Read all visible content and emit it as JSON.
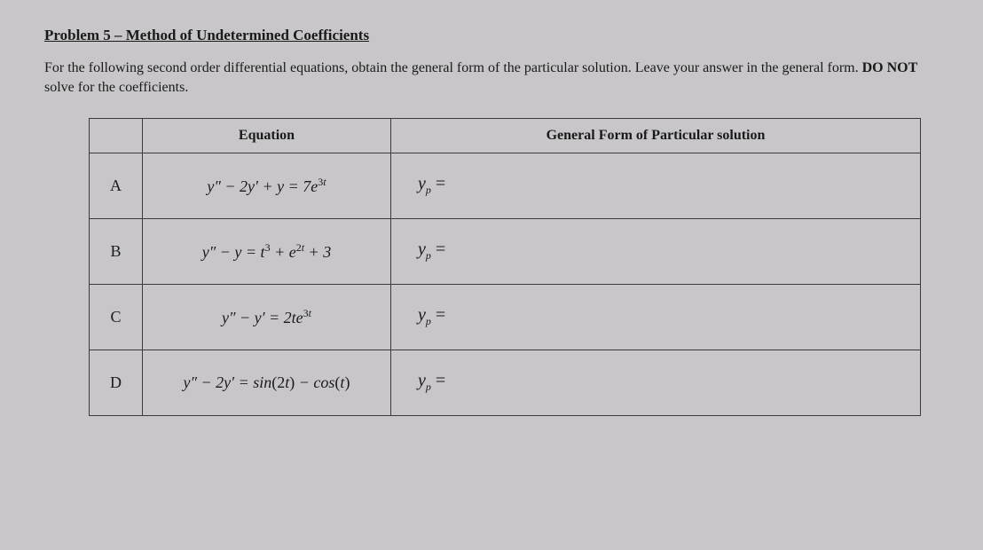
{
  "problem": {
    "title": "Problem 5 – Method of Undetermined Coefficients",
    "instructions_part1": "For the following second order differential equations, obtain the general form of the particular solution. Leave your answer in the general form. ",
    "instructions_bold": "DO NOT",
    "instructions_part2": " solve for the coefficients."
  },
  "table": {
    "headers": {
      "equation": "Equation",
      "solution": "General Form of Particular solution"
    },
    "rows": [
      {
        "label": "A",
        "equation_html": "y″ − 2y′ + y = 7e<span class='sup'>3</span><span class='sup-i'>t</span>",
        "solution_prefix": "y",
        "solution_sub": "p",
        "solution_suffix": " ="
      },
      {
        "label": "B",
        "equation_html": "y″ − y = t<span class='sup'>3</span> + e<span class='sup'>2</span><span class='sup-i'>t</span> + 3",
        "solution_prefix": "y",
        "solution_sub": "p",
        "solution_suffix": " ="
      },
      {
        "label": "C",
        "equation_html": "y″ − y′ = 2te<span class='sup'>3</span><span class='sup-i'>t</span>",
        "solution_prefix": "y",
        "solution_sub": "p",
        "solution_suffix": " ="
      },
      {
        "label": "D",
        "equation_html": "y″ − 2y′ = sin<span class='rm'>(2</span>t<span class='rm'>)</span> − cos<span class='rm'>(</span>t<span class='rm'>)</span>",
        "solution_prefix": "y",
        "solution_sub": "p",
        "solution_suffix": " ="
      }
    ]
  },
  "styling": {
    "background_color": "#c8c6c9",
    "text_color": "#1a1a1a",
    "border_color": "#3a3a3a",
    "font_family": "Times New Roman",
    "title_fontsize": 17,
    "body_fontsize": 16,
    "table_fontsize": 18
  }
}
